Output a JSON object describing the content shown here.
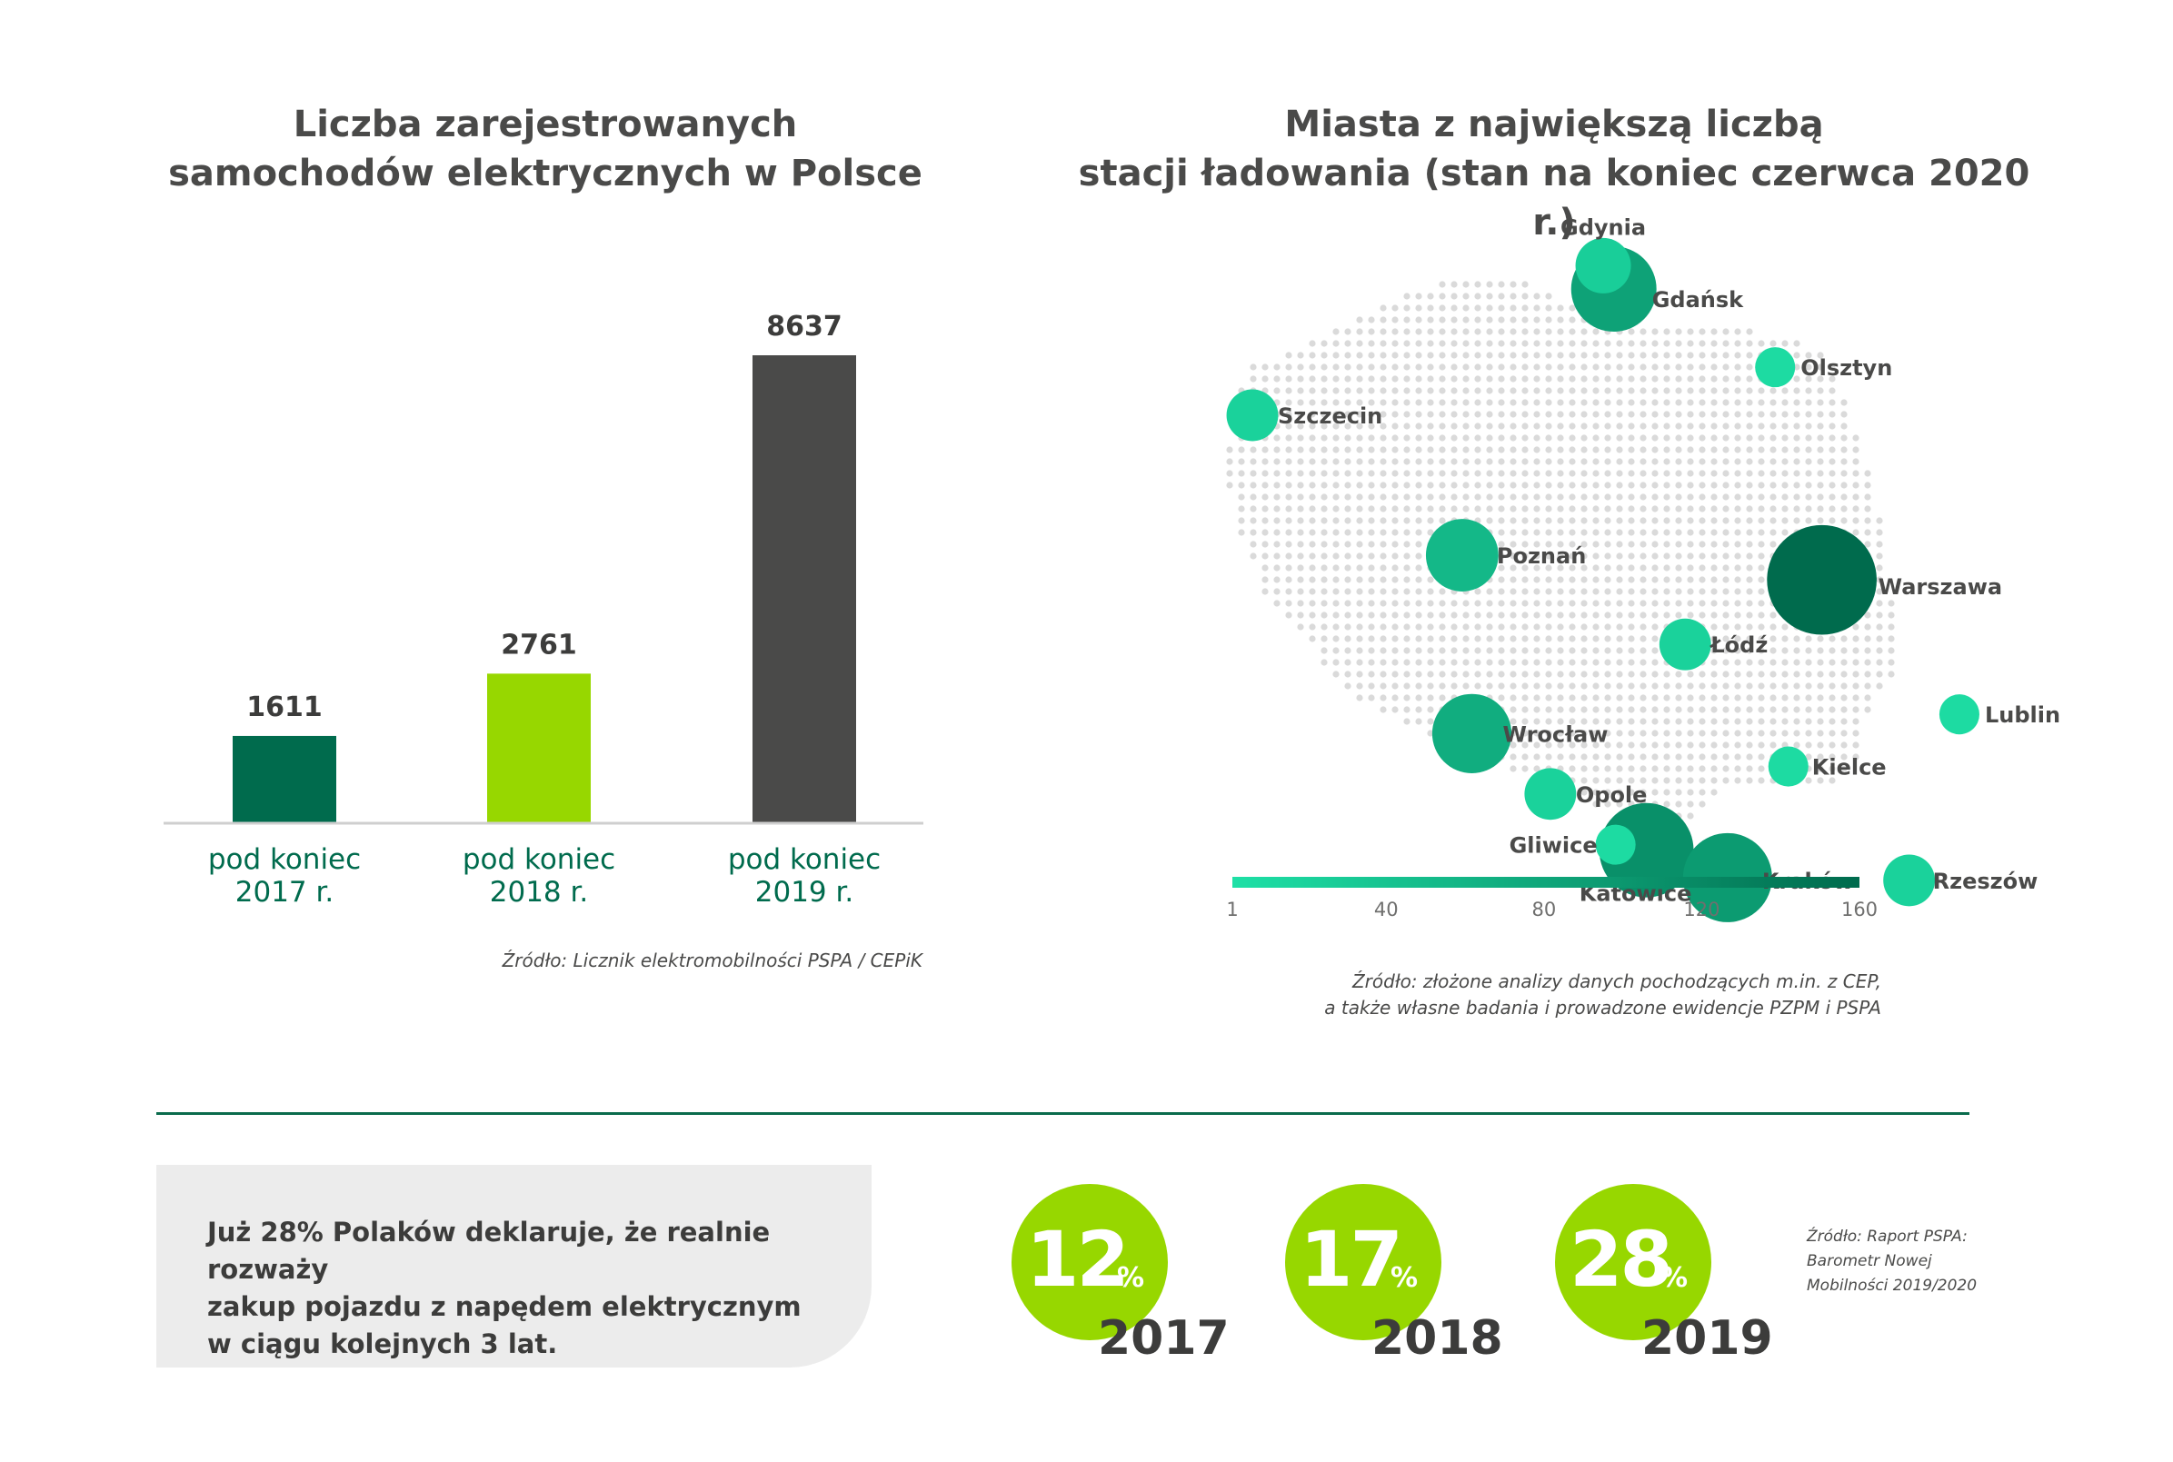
{
  "bar_chart": {
    "title_line1": "Liczba zarejestrowanych",
    "title_line2": "samochodów elektrycznych w Polsce",
    "source": "Źródło: Licznik elektromobilności PSPA / CEPiK",
    "colors": [
      "#006b4d",
      "#97d700",
      "#4a4a49"
    ]
  },
  "map_chart": {
    "title_line1": "Miasta z największą liczbą",
    "title_line2": "stacji ładowania (stan na koniec czerwca 2020 r.)",
    "source_line1": "Źródło: złożone analizy danych pochodzących m.in. z CEP,",
    "source_line2": "a także własne badania i prowadzone ewidencje PZPM i PSPA",
    "scale_colors": [
      "#1ee0a6",
      "#006b4d"
    ]
  },
  "chart_data": [
    {
      "type": "bar",
      "title": "Liczba zarejestrowanych samochodów elektrycznych w Polsce",
      "categories": [
        "pod koniec 2017 r.",
        "pod koniec 2018 r.",
        "pod koniec 2019 r."
      ],
      "category_lines": [
        [
          "pod koniec",
          "2017 r."
        ],
        [
          "pod koniec",
          "2018 r."
        ],
        [
          "pod koniec",
          "2019 r."
        ]
      ],
      "values": [
        1611,
        2761,
        8637
      ],
      "ylim": [
        0,
        9000
      ],
      "grid": false
    },
    {
      "type": "scatter",
      "title": "Miasta z największą liczbą stacji ładowania (stan na koniec czerwca 2020 r.)",
      "color_scale": {
        "ticks": [
          1,
          40,
          80,
          120,
          160
        ],
        "range": [
          1,
          160
        ]
      },
      "points": [
        {
          "city": "Gdynia",
          "value": 25,
          "lon": 18.53,
          "lat": 54.52
        },
        {
          "city": "Gdańsk",
          "value": 85,
          "lon": 18.65,
          "lat": 54.35
        },
        {
          "city": "Olsztyn",
          "value": 8,
          "lon": 20.48,
          "lat": 53.78
        },
        {
          "city": "Szczecin",
          "value": 20,
          "lon": 14.55,
          "lat": 53.43
        },
        {
          "city": "Poznań",
          "value": 55,
          "lon": 16.93,
          "lat": 52.41
        },
        {
          "city": "Warszawa",
          "value": 160,
          "lon": 21.01,
          "lat": 52.23
        },
        {
          "city": "Łódź",
          "value": 20,
          "lon": 19.46,
          "lat": 51.76
        },
        {
          "city": "Lublin",
          "value": 8,
          "lon": 22.57,
          "lat": 51.25
        },
        {
          "city": "Wrocław",
          "value": 70,
          "lon": 17.04,
          "lat": 51.11
        },
        {
          "city": "Kielce",
          "value": 8,
          "lon": 20.63,
          "lat": 50.87
        },
        {
          "city": "Opole",
          "value": 20,
          "lon": 17.93,
          "lat": 50.67
        },
        {
          "city": "Gliwice",
          "value": 8,
          "lon": 18.67,
          "lat": 50.3
        },
        {
          "city": "Katowice",
          "value": 110,
          "lon": 19.02,
          "lat": 50.26
        },
        {
          "city": "Kraków",
          "value": 95,
          "lon": 19.94,
          "lat": 50.06
        },
        {
          "city": "Rzeszów",
          "value": 20,
          "lon": 22.0,
          "lat": 50.04
        }
      ]
    }
  ],
  "survey": {
    "text_line1": "Już 28% Polaków deklaruje, że realnie rozważy",
    "text_line2": "zakup pojazdu z napędem elektrycznym",
    "text_line3": "w ciągu kolejnych 3 lat.",
    "items": [
      {
        "value": "12",
        "sign": "%",
        "year": "2017"
      },
      {
        "value": "17",
        "sign": "%",
        "year": "2018"
      },
      {
        "value": "28",
        "sign": "%",
        "year": "2019"
      }
    ],
    "source_line1": "Źródło: Raport PSPA:",
    "source_line2": "Barometr Nowej",
    "source_line3": "Mobilności 2019/2020",
    "accent": "#97d700"
  }
}
